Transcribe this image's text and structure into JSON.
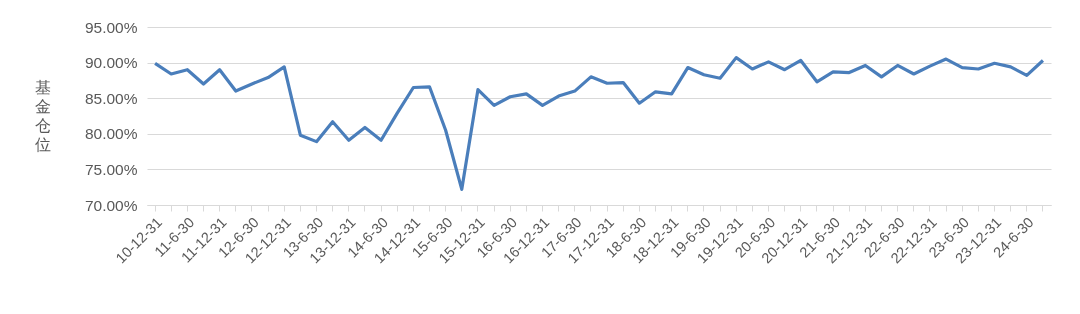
{
  "chart_data": {
    "type": "line",
    "ylabel": "基金仓位",
    "categories": [
      "10-12-31",
      null,
      "11-6-30",
      null,
      "11-12-31",
      null,
      "12-6-30",
      null,
      "12-12-31",
      null,
      "13-6-30",
      null,
      "13-12-31",
      null,
      "14-6-30",
      null,
      "14-12-31",
      null,
      "15-6-30",
      null,
      "15-12-31",
      null,
      "16-6-30",
      null,
      "16-12-31",
      null,
      "17-6-30",
      null,
      "17-12-31",
      null,
      "18-6-30",
      null,
      "18-12-31",
      null,
      "19-6-30",
      null,
      "19-12-31",
      null,
      "20-6-30",
      null,
      "20-12-31",
      null,
      "21-6-30",
      null,
      "21-12-31",
      null,
      "22-6-30",
      null,
      "22-12-31",
      null,
      "23-6-30",
      null,
      "23-12-31",
      null,
      "24-6-30",
      null
    ],
    "series": [
      {
        "color": "#4a7ebb",
        "values": [
          89.9,
          88.4,
          89.0,
          87.0,
          89.0,
          86.0,
          87.0,
          87.9,
          89.4,
          79.8,
          78.9,
          81.7,
          79.1,
          80.9,
          79.1,
          82.9,
          86.5,
          86.6,
          80.5,
          72.2,
          86.2,
          84.0,
          85.2,
          85.6,
          84.0,
          85.3,
          86.0,
          88.0,
          87.1,
          87.2,
          84.3,
          85.9,
          85.6,
          89.3,
          88.3,
          87.8,
          90.7,
          89.1,
          90.1,
          89.0,
          90.3,
          87.3,
          88.7,
          88.6,
          89.6,
          88.0,
          89.6,
          88.4,
          89.5,
          90.5,
          89.3,
          89.1,
          89.9,
          89.4,
          88.2,
          90.3
        ]
      }
    ],
    "ylim": [
      70,
      95
    ],
    "yticks": [
      {
        "value": 70,
        "label": "70.00%"
      },
      {
        "value": 75,
        "label": "75.00%"
      },
      {
        "value": 80,
        "label": "80.00%"
      },
      {
        "value": 85,
        "label": "85.00%"
      },
      {
        "value": 90,
        "label": "90.00%"
      },
      {
        "value": 95,
        "label": "95.00%"
      }
    ],
    "grid": "y",
    "marker": "none",
    "line_style": "solid"
  }
}
